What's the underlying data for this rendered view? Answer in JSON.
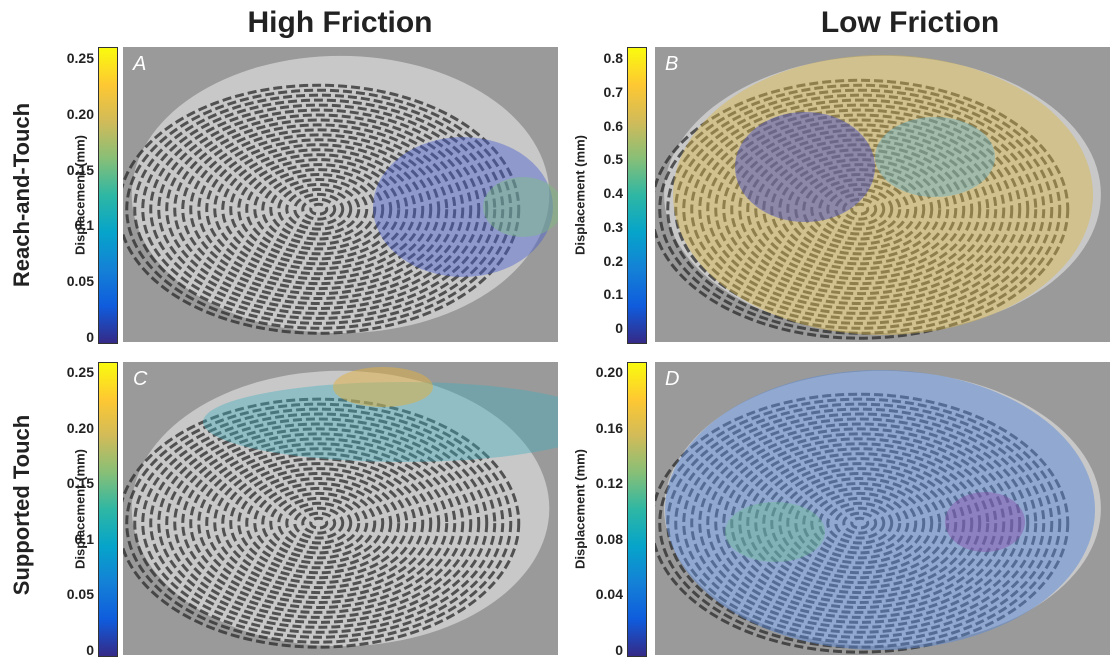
{
  "column_titles": [
    "High Friction",
    "Low Friction"
  ],
  "row_labels": [
    "Reach-and-Touch",
    "Supported Touch"
  ],
  "panels": [
    {
      "letter": "A",
      "colorbar_label": "Displacement (mm)",
      "ticks": [
        "0.25",
        "0.20",
        "0.15",
        "0.1",
        "0.05",
        "0"
      ]
    },
    {
      "letter": "B",
      "colorbar_label": "Displacement (mm)",
      "ticks": [
        "0.8",
        "0.7",
        "0.6",
        "0.5",
        "0.4",
        "0.3",
        "0.2",
        "0.1",
        "0"
      ]
    },
    {
      "letter": "C",
      "colorbar_label": "Displacement (mm)",
      "ticks": [
        "0.25",
        "0.20",
        "0.15",
        "0.1",
        "0.05",
        "0"
      ]
    },
    {
      "letter": "D",
      "colorbar_label": "Displacement (mm)",
      "ticks": [
        "0.20",
        "0.16",
        "0.12",
        "0.08",
        "0.04",
        "0"
      ]
    }
  ]
}
